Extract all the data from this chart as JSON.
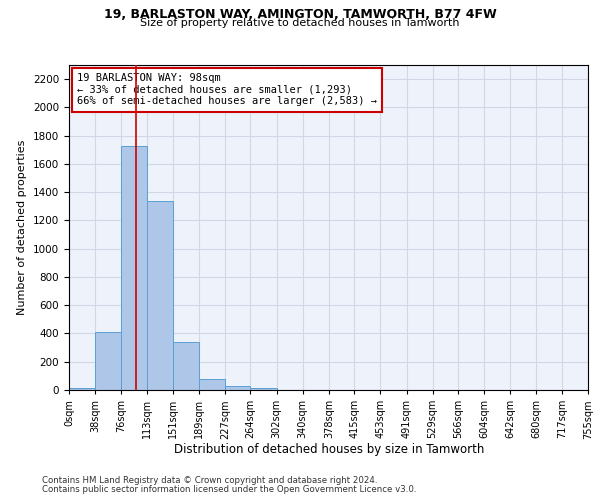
{
  "title1": "19, BARLASTON WAY, AMINGTON, TAMWORTH, B77 4FW",
  "title2": "Size of property relative to detached houses in Tamworth",
  "xlabel": "Distribution of detached houses by size in Tamworth",
  "ylabel": "Number of detached properties",
  "footer1": "Contains HM Land Registry data © Crown copyright and database right 2024.",
  "footer2": "Contains public sector information licensed under the Open Government Licence v3.0.",
  "bin_edges": [
    0,
    38,
    76,
    113,
    151,
    189,
    227,
    264,
    302,
    340,
    378,
    415,
    453,
    491,
    529,
    566,
    604,
    642,
    680,
    717,
    755
  ],
  "bar_heights": [
    15,
    410,
    1730,
    1340,
    340,
    75,
    30,
    15,
    0,
    0,
    0,
    0,
    0,
    0,
    0,
    0,
    0,
    0,
    0,
    0
  ],
  "bar_color": "#aec6e8",
  "bar_edge_color": "#5a9fd4",
  "grid_color": "#d0d8e8",
  "background_color": "#eef2fa",
  "vline_x": 98,
  "vline_color": "#cc0000",
  "annotation_line1": "19 BARLASTON WAY: 98sqm",
  "annotation_line2": "← 33% of detached houses are smaller (1,293)",
  "annotation_line3": "66% of semi-detached houses are larger (2,583) →",
  "annotation_box_color": "#cc0000",
  "ylim": [
    0,
    2300
  ],
  "yticks": [
    0,
    200,
    400,
    600,
    800,
    1000,
    1200,
    1400,
    1600,
    1800,
    2000,
    2200
  ],
  "tick_labels": [
    "0sqm",
    "38sqm",
    "76sqm",
    "113sqm",
    "151sqm",
    "189sqm",
    "227sqm",
    "264sqm",
    "302sqm",
    "340sqm",
    "378sqm",
    "415sqm",
    "453sqm",
    "491sqm",
    "529sqm",
    "566sqm",
    "604sqm",
    "642sqm",
    "680sqm",
    "717sqm",
    "755sqm"
  ],
  "xlim": [
    0,
    755
  ]
}
